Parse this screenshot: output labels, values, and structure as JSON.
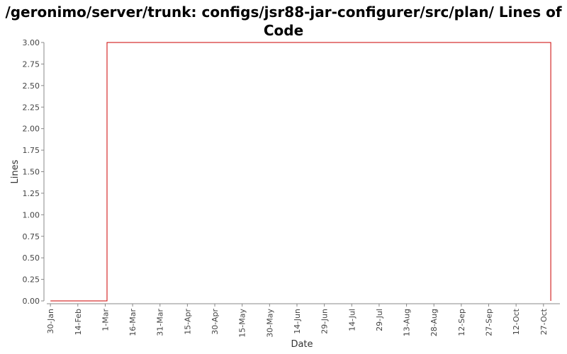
{
  "chart_data": {
    "type": "line",
    "title": "/geronimo/server/trunk: configs/jsr88-jar-configurer/src/plan/ Lines of Code",
    "xlabel": "Date",
    "ylabel": "Lines",
    "ylim": [
      0,
      3.0
    ],
    "y_ticks": [
      "0.00",
      "0.25",
      "0.50",
      "0.75",
      "1.00",
      "1.25",
      "1.50",
      "1.75",
      "2.00",
      "2.25",
      "2.50",
      "2.75",
      "3.00"
    ],
    "x_ticks": [
      "30-Jan",
      "14-Feb",
      "1-Mar",
      "16-Mar",
      "31-Mar",
      "15-Apr",
      "30-Apr",
      "15-May",
      "30-May",
      "14-Jun",
      "29-Jun",
      "14-Jul",
      "29-Jul",
      "13-Aug",
      "28-Aug",
      "12-Sep",
      "27-Sep",
      "12-Oct",
      "27-Oct"
    ],
    "grid": false,
    "series": [
      {
        "color": "#cc0000",
        "points": [
          {
            "x": "30-Jan",
            "y": 0
          },
          {
            "x": "2-Mar",
            "y": 0
          },
          {
            "x": "2-Mar",
            "y": 3
          },
          {
            "x": "31-Oct",
            "y": 3
          },
          {
            "x": "31-Oct",
            "y": 0
          }
        ]
      }
    ]
  }
}
